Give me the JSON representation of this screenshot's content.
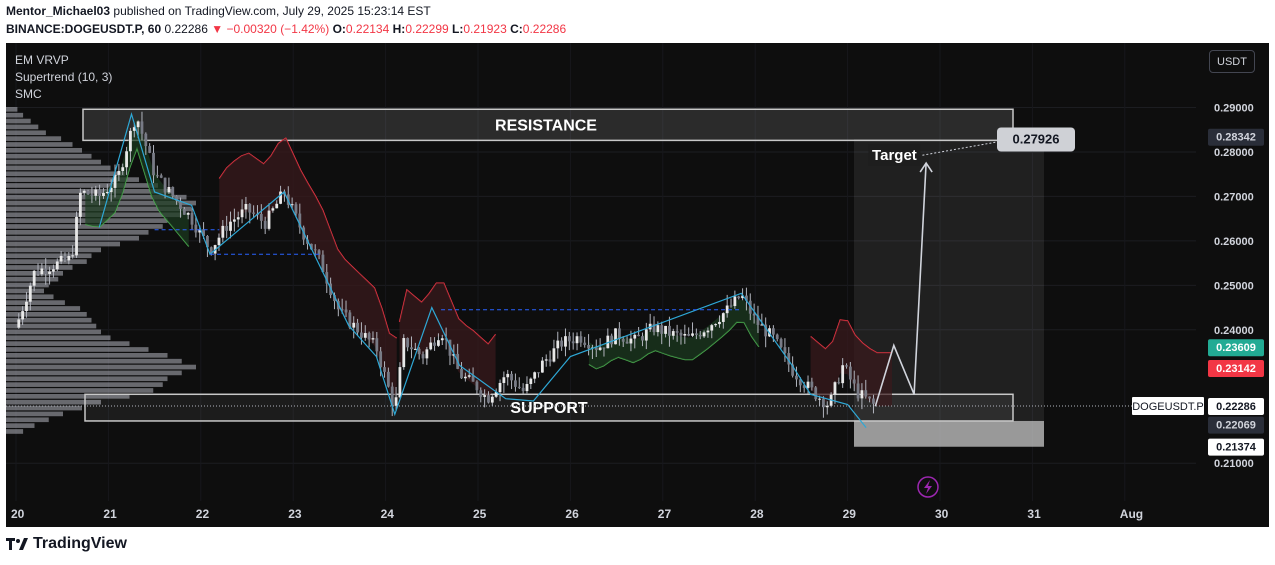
{
  "header": {
    "line1_author": "Mentor_Michael03",
    "line1_rest": "published on TradingView.com, July 29, 2025 15:23:14 EST",
    "symbol": "BINANCE:DOGEUSDT.P, 60",
    "last": "0.22286",
    "arrow": "▼",
    "change": "−0.00320 (−1.42%)",
    "o_label": "O:",
    "o_val": "0.22134",
    "h_label": "H:",
    "h_val": "0.22299",
    "l_label": "L:",
    "l_val": "0.21923",
    "c_label": "C:",
    "c_val": "0.22286"
  },
  "indicators": [
    "EM VRVP",
    "Supertrend (10, 3)",
    "SMC"
  ],
  "currency_button": "USDT",
  "annotations": {
    "resistance": "RESISTANCE",
    "support": "SUPPORT",
    "target": "Target",
    "target_price": "0.27926"
  },
  "footer": {
    "brand": "TradingView"
  },
  "chart_data": {
    "type": "candlestick",
    "symbol": "DOGEUSDT.P",
    "ylim": [
      0.2015,
      0.3045
    ],
    "y_ticks": [
      "0.29000",
      "0.28000",
      "0.27000",
      "0.26000",
      "0.25000",
      "0.24000",
      "0.21000"
    ],
    "x_ticks": [
      "20",
      "21",
      "22",
      "23",
      "24",
      "25",
      "26",
      "27",
      "28",
      "29",
      "30",
      "31",
      "Aug"
    ],
    "price_labels": [
      {
        "text": "0.28342",
        "value": 0.28342,
        "style": "dark"
      },
      {
        "text": "0.23609",
        "value": 0.23609,
        "style": "green"
      },
      {
        "text": "0.23142",
        "value": 0.23142,
        "style": "red"
      },
      {
        "text": "0.22286",
        "value": 0.22286,
        "style": "white"
      },
      {
        "text": "0.22069",
        "value": 0.22069,
        "style": "dark"
      },
      {
        "text": "0.21374",
        "value": 0.21374,
        "style": "white"
      }
    ],
    "symbol_tag": "DOGEUSDT.P",
    "resistance_zone": [
      0.2826,
      0.2896
    ],
    "support_zone": [
      0.2195,
      0.2255
    ],
    "projection_zone": [
      0.2137,
      0.2829
    ],
    "target": 0.27926,
    "price_path": [
      [
        0.0,
        0.2405
      ],
      [
        0.2,
        0.253
      ],
      [
        0.4,
        0.2545
      ],
      [
        0.6,
        0.256
      ],
      [
        0.7,
        0.271
      ],
      [
        0.9,
        0.27
      ],
      [
        1.1,
        0.274
      ],
      [
        1.3,
        0.2885
      ],
      [
        1.5,
        0.275
      ],
      [
        1.7,
        0.27
      ],
      [
        1.9,
        0.265
      ],
      [
        2.1,
        0.258
      ],
      [
        2.3,
        0.264
      ],
      [
        2.5,
        0.267
      ],
      [
        2.7,
        0.264
      ],
      [
        2.9,
        0.271
      ],
      [
        3.1,
        0.262
      ],
      [
        3.3,
        0.255
      ],
      [
        3.5,
        0.244
      ],
      [
        3.7,
        0.24
      ],
      [
        3.9,
        0.236
      ],
      [
        4.1,
        0.222
      ],
      [
        4.2,
        0.2375
      ],
      [
        4.4,
        0.234
      ],
      [
        4.6,
        0.24
      ],
      [
        4.8,
        0.23
      ],
      [
        5.0,
        0.227
      ],
      [
        5.1,
        0.2245
      ],
      [
        5.3,
        0.23
      ],
      [
        5.5,
        0.226
      ],
      [
        5.7,
        0.2325
      ],
      [
        5.9,
        0.237
      ],
      [
        6.1,
        0.2385
      ],
      [
        6.3,
        0.236
      ],
      [
        6.5,
        0.239
      ],
      [
        6.7,
        0.2375
      ],
      [
        6.9,
        0.2405
      ],
      [
        7.1,
        0.239
      ],
      [
        7.3,
        0.238
      ],
      [
        7.5,
        0.241
      ],
      [
        7.7,
        0.2445
      ],
      [
        7.85,
        0.2478
      ],
      [
        8.0,
        0.242
      ],
      [
        8.2,
        0.238
      ],
      [
        8.4,
        0.231
      ],
      [
        8.6,
        0.2265
      ],
      [
        8.8,
        0.223
      ],
      [
        8.95,
        0.232
      ],
      [
        9.1,
        0.226
      ],
      [
        9.3,
        0.2228
      ]
    ],
    "volume_profile": [
      12,
      18,
      26,
      34,
      42,
      58,
      70,
      80,
      90,
      100,
      110,
      125,
      140,
      160,
      175,
      190,
      200,
      195,
      185,
      170,
      165,
      150,
      140,
      120,
      100,
      90,
      85,
      70,
      60,
      55,
      45,
      40,
      50,
      62,
      78,
      85,
      90,
      95,
      100,
      110,
      130,
      150,
      170,
      185,
      200,
      185,
      170,
      165,
      155,
      130,
      100,
      80,
      60,
      45,
      30,
      18
    ]
  }
}
